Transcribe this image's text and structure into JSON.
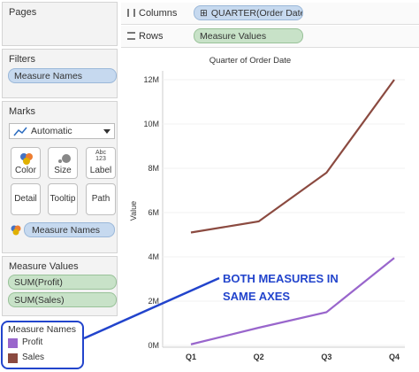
{
  "panels": {
    "pages": {
      "title": "Pages"
    },
    "filters": {
      "title": "Filters",
      "items": [
        "Measure Names"
      ]
    },
    "marks": {
      "title": "Marks",
      "mark_type": "Automatic",
      "buttons": [
        "Color",
        "Size",
        "Label",
        "Detail",
        "Tooltip",
        "Path"
      ],
      "label_icon_text": "Abc\n123",
      "field": "Measure Names"
    },
    "measure_values": {
      "title": "Measure Values",
      "items": [
        "SUM(Profit)",
        "SUM(Sales)"
      ]
    },
    "legend": {
      "title": "Measure Names",
      "items": [
        {
          "label": "Profit",
          "color": "#9966cc"
        },
        {
          "label": "Sales",
          "color": "#8b4a40"
        }
      ]
    }
  },
  "shelves": {
    "columns": {
      "label": "Columns",
      "pill": "QUARTER(Order Date)",
      "pill_prefix": "⊞"
    },
    "rows": {
      "label": "Rows",
      "pill": "Measure Values"
    }
  },
  "annotation": {
    "line1": "BOTH MEASURES IN",
    "line2": "SAME AXES"
  },
  "colors": {
    "annotation": "#2244cc",
    "profit": "#9966cc",
    "sales": "#8b4a40"
  },
  "chart_data": {
    "type": "line",
    "title": "Quarter of Order Date",
    "ylabel": "Value",
    "categories": [
      "Q1",
      "Q2",
      "Q3",
      "Q4"
    ],
    "ylim": [
      0,
      12000000
    ],
    "y_ticks": [
      {
        "value": 0,
        "label": "0M"
      },
      {
        "value": 2000000,
        "label": "2M"
      },
      {
        "value": 4000000,
        "label": "4M"
      },
      {
        "value": 6000000,
        "label": "6M"
      },
      {
        "value": 8000000,
        "label": "8M"
      },
      {
        "value": 10000000,
        "label": "10M"
      },
      {
        "value": 12000000,
        "label": "12M"
      }
    ],
    "series": [
      {
        "name": "Sales",
        "color": "#8b4a40",
        "values": [
          5100000,
          5600000,
          7800000,
          12000000
        ]
      },
      {
        "name": "Profit",
        "color": "#9966cc",
        "values": [
          50000,
          800000,
          1500000,
          3950000
        ]
      }
    ]
  }
}
